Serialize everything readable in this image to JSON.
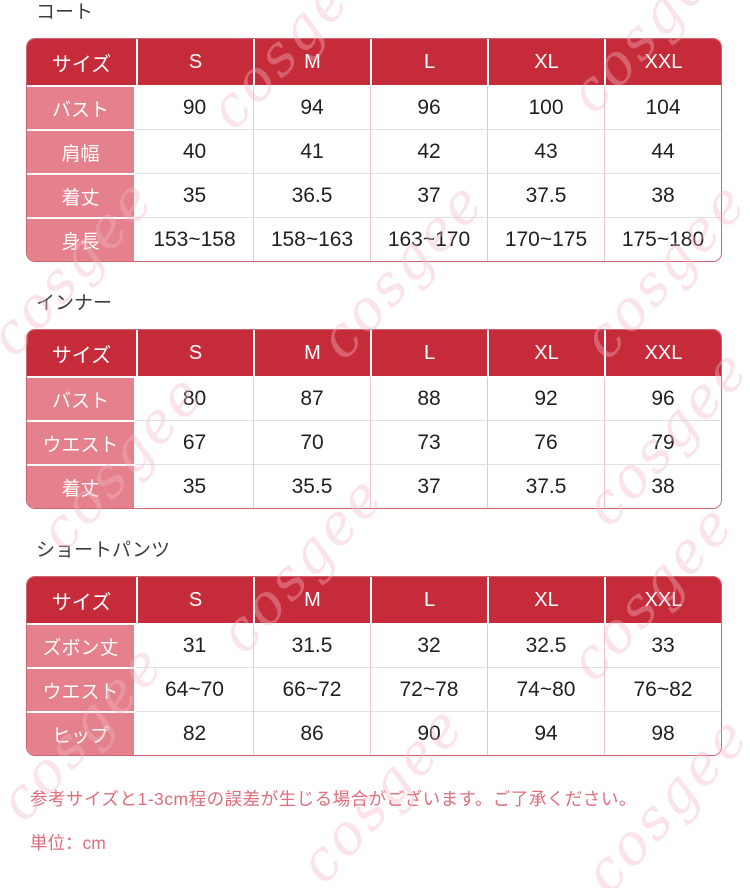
{
  "page": {
    "watermark": "cosgee",
    "note": "参考サイズと1-3cm程の誤差が生じる場合がございます。ご了承ください。",
    "unit_label": "単位：cm"
  },
  "colors": {
    "header_bg": "#c62b39",
    "label_bg": "#e4818c",
    "header_text": "#ffffff",
    "value_text": "#1f1f1f",
    "title_text": "#3c3c3c",
    "note_text": "#dd6e7c",
    "table_border": "#cd6470",
    "row_divider": "#e0e0e0",
    "column_divider": "#eec6ca",
    "watermark_color": "#f3b9c6"
  },
  "tables": [
    {
      "title": "コート",
      "columns": [
        "サイズ",
        "S",
        "M",
        "L",
        "XL",
        "XXL"
      ],
      "rows": [
        {
          "label": "バスト",
          "values": [
            "90",
            "94",
            "96",
            "100",
            "104"
          ]
        },
        {
          "label": "肩幅",
          "values": [
            "40",
            "41",
            "42",
            "43",
            "44"
          ]
        },
        {
          "label": "着丈",
          "values": [
            "35",
            "36.5",
            "37",
            "37.5",
            "38"
          ]
        },
        {
          "label": "身長",
          "values": [
            "153~158",
            "158~163",
            "163~170",
            "170~175",
            "175~180"
          ]
        }
      ]
    },
    {
      "title": "インナー",
      "columns": [
        "サイズ",
        "S",
        "M",
        "L",
        "XL",
        "XXL"
      ],
      "rows": [
        {
          "label": "バスト",
          "values": [
            "80",
            "87",
            "88",
            "92",
            "96"
          ]
        },
        {
          "label": "ウエスト",
          "values": [
            "67",
            "70",
            "73",
            "76",
            "79"
          ]
        },
        {
          "label": "着丈",
          "values": [
            "35",
            "35.5",
            "37",
            "37.5",
            "38"
          ]
        }
      ]
    },
    {
      "title": "ショートパンツ",
      "columns": [
        "サイズ",
        "S",
        "M",
        "L",
        "XL",
        "XXL"
      ],
      "rows": [
        {
          "label": "ズボン丈",
          "values": [
            "31",
            "31.5",
            "32",
            "32.5",
            "33"
          ]
        },
        {
          "label": "ウエスト",
          "values": [
            "64~70",
            "66~72",
            "72~78",
            "74~80",
            "76~82"
          ]
        },
        {
          "label": "ヒップ",
          "values": [
            "82",
            "86",
            "90",
            "94",
            "98"
          ]
        }
      ]
    }
  ]
}
